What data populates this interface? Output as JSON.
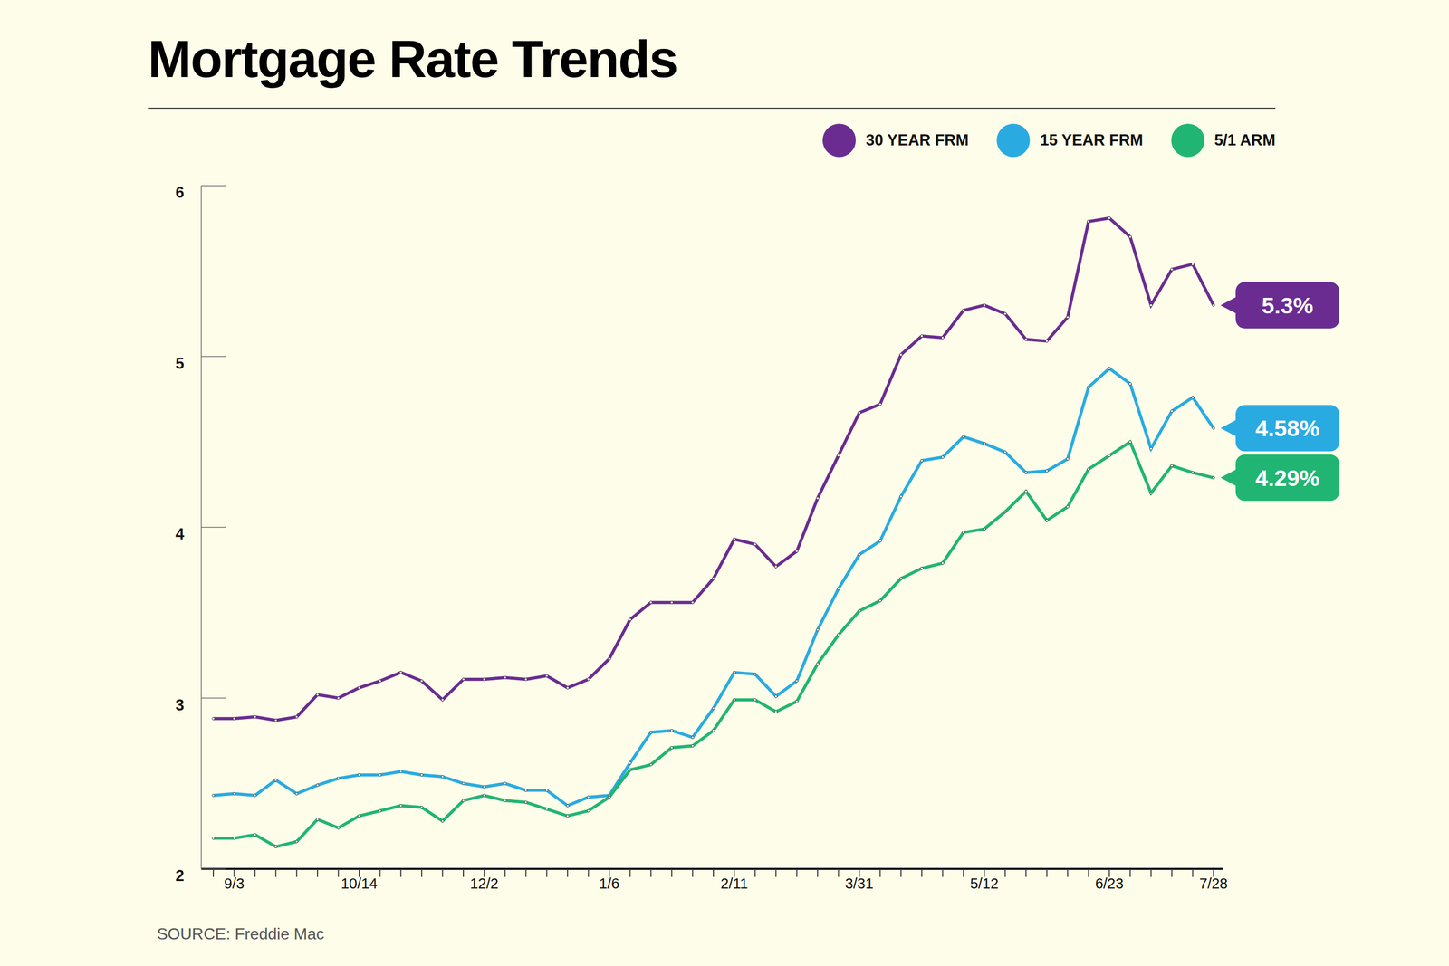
{
  "chart_data": {
    "type": "line",
    "title": "Mortgage Rate Trends",
    "source": "SOURCE: Freddie Mac",
    "legend": "top-right",
    "grid": false,
    "categories": [
      null,
      "9/3",
      null,
      null,
      null,
      null,
      null,
      "10/14",
      null,
      null,
      null,
      null,
      null,
      "12/2",
      null,
      null,
      null,
      null,
      null,
      "1/6",
      null,
      null,
      null,
      null,
      null,
      "2/11",
      null,
      null,
      null,
      null,
      null,
      "3/31",
      null,
      null,
      null,
      null,
      null,
      "5/12",
      null,
      null,
      null,
      null,
      null,
      "6/23",
      null,
      null,
      null,
      null,
      "7/28"
    ],
    "ylim": [
      2,
      6
    ],
    "yticks": [
      2,
      3,
      4,
      5,
      6
    ],
    "series": [
      {
        "name": "30 YEAR FRM",
        "color": "#6a2c91",
        "marker": "circle",
        "values": [
          2.88,
          2.88,
          2.89,
          2.87,
          2.89,
          3.02,
          3.0,
          3.06,
          3.1,
          3.15,
          3.1,
          2.99,
          3.11,
          3.11,
          3.12,
          3.11,
          3.13,
          3.06,
          3.11,
          3.23,
          3.46,
          3.56,
          3.56,
          3.56,
          3.7,
          3.93,
          3.9,
          3.77,
          3.86,
          4.17,
          4.42,
          4.67,
          4.72,
          5.01,
          5.12,
          5.11,
          5.27,
          5.3,
          5.25,
          5.1,
          5.09,
          5.23,
          5.79,
          5.81,
          5.7,
          5.3,
          5.51,
          5.54,
          5.3
        ],
        "value_labels": [
          null,
          null,
          null,
          null,
          null,
          null,
          null,
          null,
          null,
          null,
          null,
          null,
          null,
          null,
          null,
          null,
          null,
          null,
          null,
          null,
          null,
          null,
          null,
          null,
          null,
          null,
          null,
          null,
          null,
          null,
          null,
          null,
          null,
          null,
          null,
          null,
          null,
          null,
          null,
          null,
          null,
          null,
          null,
          null,
          null,
          null,
          null,
          null,
          "5.3%"
        ]
      },
      {
        "name": "15 YEAR FRM",
        "color": "#29abe2",
        "marker": "circle",
        "values": [
          2.43,
          2.44,
          2.43,
          2.52,
          2.44,
          2.49,
          2.53,
          2.55,
          2.55,
          2.57,
          2.55,
          2.54,
          2.5,
          2.48,
          2.5,
          2.46,
          2.46,
          2.37,
          2.42,
          2.43,
          2.62,
          2.8,
          2.81,
          2.77,
          2.94,
          3.15,
          3.14,
          3.01,
          3.1,
          3.4,
          3.64,
          3.84,
          3.92,
          4.18,
          4.39,
          4.41,
          4.53,
          4.49,
          4.44,
          4.32,
          4.33,
          4.4,
          4.82,
          4.93,
          4.84,
          4.46,
          4.68,
          4.76,
          4.58
        ],
        "value_labels": [
          null,
          null,
          null,
          null,
          null,
          null,
          null,
          null,
          null,
          null,
          null,
          null,
          null,
          null,
          null,
          null,
          null,
          null,
          null,
          null,
          null,
          null,
          null,
          null,
          null,
          null,
          null,
          null,
          null,
          null,
          null,
          null,
          null,
          null,
          null,
          null,
          null,
          null,
          null,
          null,
          null,
          null,
          null,
          null,
          null,
          null,
          null,
          null,
          "4.58%"
        ]
      },
      {
        "name": "5/1 ARM",
        "color": "#21b573",
        "marker": "circle",
        "values": [
          2.18,
          2.18,
          2.2,
          2.13,
          2.16,
          2.29,
          2.24,
          2.31,
          2.34,
          2.37,
          2.36,
          2.28,
          2.4,
          2.43,
          2.4,
          2.39,
          2.35,
          2.31,
          2.34,
          2.42,
          2.58,
          2.61,
          2.71,
          2.72,
          2.81,
          2.99,
          2.99,
          2.92,
          2.98,
          3.2,
          3.37,
          3.51,
          3.57,
          3.7,
          3.76,
          3.79,
          3.97,
          3.99,
          4.09,
          4.21,
          4.04,
          4.12,
          4.34,
          4.42,
          4.5,
          4.2,
          4.36,
          4.32,
          4.29
        ],
        "value_labels": [
          null,
          null,
          null,
          null,
          null,
          null,
          null,
          null,
          null,
          null,
          null,
          null,
          null,
          null,
          null,
          null,
          null,
          null,
          null,
          null,
          null,
          null,
          null,
          null,
          null,
          null,
          null,
          null,
          null,
          null,
          null,
          null,
          null,
          null,
          null,
          null,
          null,
          null,
          null,
          null,
          null,
          null,
          null,
          null,
          null,
          null,
          null,
          null,
          "4.29%"
        ]
      }
    ]
  }
}
